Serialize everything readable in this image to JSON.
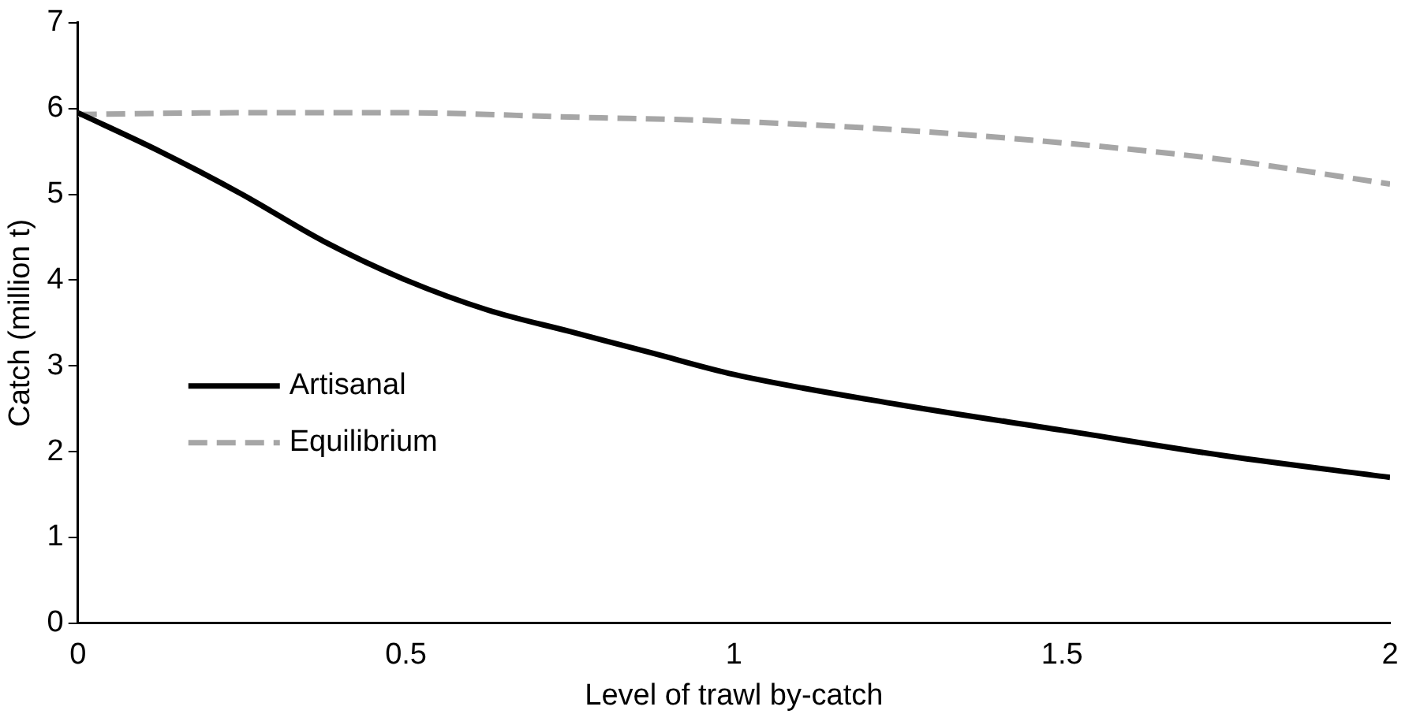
{
  "chart_data": {
    "type": "line",
    "xlabel": "Level of trawl by-catch",
    "ylabel": "Catch (million t)",
    "xlim": [
      0,
      2
    ],
    "xticks": [
      0,
      0.5,
      1,
      1.5,
      2
    ],
    "ylim": [
      0,
      7
    ],
    "yticks": [
      0,
      1,
      2,
      3,
      4,
      5,
      6,
      7
    ],
    "grid": false,
    "legend": "left",
    "marker": "none",
    "series": [
      {
        "name": "Artisanal",
        "color": "#000000",
        "line_style": "solid",
        "x": [
          0,
          0.125,
          0.25,
          0.375,
          0.5,
          0.625,
          0.75,
          0.875,
          1,
          1.25,
          1.5,
          1.75,
          2
        ],
        "values": [
          5.95,
          5.5,
          5,
          4.45,
          4,
          3.65,
          3.4,
          3.15,
          2.9,
          2.55,
          2.25,
          1.95,
          1.7
        ]
      },
      {
        "name": "Equilibrium",
        "color": "#a6a6a6",
        "line_style": "dashed",
        "x": [
          0,
          0.25,
          0.5,
          0.75,
          1,
          1.25,
          1.5,
          1.75,
          2
        ],
        "values": [
          5.93,
          5.95,
          5.95,
          5.9,
          5.85,
          5.75,
          5.6,
          5.4,
          5.12
        ]
      }
    ]
  }
}
